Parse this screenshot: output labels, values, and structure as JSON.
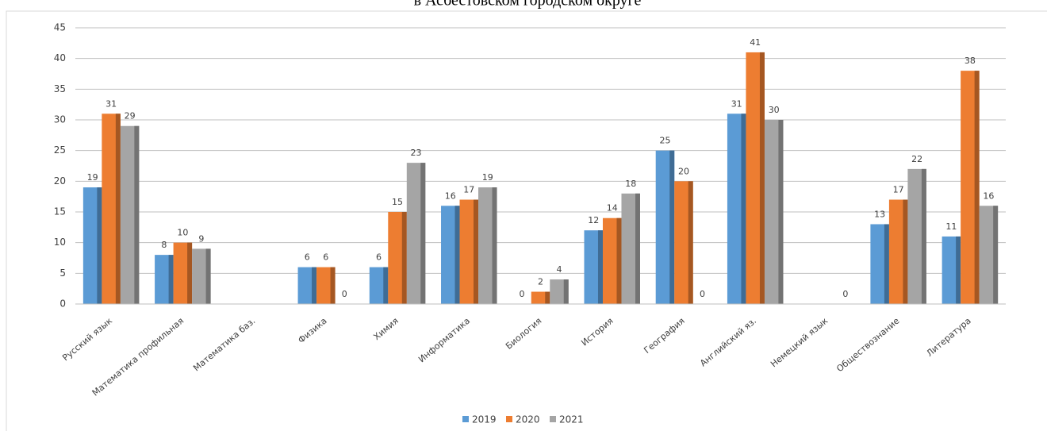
{
  "chart_data": {
    "type": "bar",
    "title": "в Асбестовском городском округе",
    "categories": [
      "Русский язык",
      "Математика профильная",
      "Математика баз.",
      "Физика",
      "Химия",
      "Информатика",
      "Биология",
      "История",
      "География",
      "Английский яз.",
      "Немецкий язык",
      "Обществознание",
      "Литература"
    ],
    "series": [
      {
        "name": "2019",
        "color": "#5b9bd5",
        "values": [
          19,
          8,
          null,
          6,
          6,
          16,
          0,
          12,
          25,
          31,
          null,
          13,
          11
        ]
      },
      {
        "name": "2020",
        "color": "#ed7d31",
        "values": [
          31,
          10,
          null,
          6,
          15,
          17,
          2,
          14,
          20,
          41,
          null,
          17,
          38
        ]
      },
      {
        "name": "2021",
        "color": "#a5a5a5",
        "values": [
          29,
          9,
          null,
          0,
          23,
          19,
          4,
          18,
          0,
          30,
          0,
          22,
          16
        ]
      }
    ],
    "ylim": [
      0,
      45
    ],
    "yticks": [
      0,
      5,
      10,
      15,
      20,
      25,
      30,
      35,
      40,
      45
    ],
    "grid": true,
    "legend": "bottom"
  }
}
